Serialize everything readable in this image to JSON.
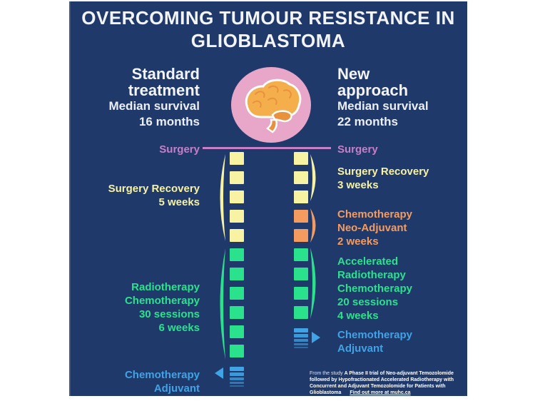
{
  "title": {
    "line1": "OVERCOMING TUMOUR RESISTANCE IN",
    "line2": "GLIOBLASTOMA"
  },
  "columns": {
    "standard": {
      "heading_line1": "Standard",
      "heading_line2": "treatment",
      "sub_line1": "Median survival",
      "sub_line2": "16 months"
    },
    "new": {
      "heading_line1": "New",
      "heading_line2": "approach",
      "sub_line1": "Median survival",
      "sub_line2": "22 months"
    }
  },
  "labels": {
    "std_surgery": {
      "text": "Surgery"
    },
    "std_recovery": {
      "line1": "Surgery Recovery",
      "line2": "5 weeks"
    },
    "std_radio": {
      "line1": "Radiotherapy",
      "line2": "Chemotherapy",
      "line3": "30 sessions",
      "line4": "6 weeks"
    },
    "std_adjuvant": {
      "line1": "Chemotherapy",
      "line2": "Adjuvant"
    },
    "new_surgery": {
      "text": "Surgery"
    },
    "new_recovery": {
      "line1": "Surgery Recovery",
      "line2": "3 weeks"
    },
    "new_neoadjuvant": {
      "line1": "Chemotherapy",
      "line2": "Neo-Adjuvant",
      "line3": "2 weeks"
    },
    "new_accel": {
      "line1": "Accelerated",
      "line2": "Radiotherapy",
      "line3": "Chemotherapy",
      "line4": "20 sessions",
      "line5": "4 weeks"
    },
    "new_adjuvant": {
      "line1": "Chemotherapy",
      "line2": "Adjuvant"
    }
  },
  "bars": {
    "standard": {
      "segments": [
        {
          "name": "surgery-and-recovery",
          "color": "#f7f3a2",
          "blocks": 5
        },
        {
          "name": "radiotherapy-chemotherapy",
          "color": "#2be28c",
          "blocks": 6
        },
        {
          "name": "chemotherapy-adjuvant",
          "color": "#3fa3e6",
          "stripes": 5
        }
      ]
    },
    "new": {
      "segments": [
        {
          "name": "surgery-and-recovery",
          "color": "#f7f3a2",
          "blocks": 3
        },
        {
          "name": "chemotherapy-neo-adjuvant",
          "color": "#f49c60",
          "blocks": 2
        },
        {
          "name": "accelerated-radiotherapy-chemotherapy",
          "color": "#2be28c",
          "blocks": 4
        },
        {
          "name": "chemotherapy-adjuvant",
          "color": "#3fa3e6",
          "stripes": 5
        }
      ]
    }
  },
  "footer": {
    "prefix": "From the study ",
    "study": "A Phase II trial of Neo-adjuvant Temozolomide followed by Hypofractionated Accelerated Radiotherapy with Concurrent and Adjuvant Temozolomide for Patients with Glioblastoma",
    "link": "Find out more at muhc.ca"
  },
  "colors": {
    "background": "#20396b",
    "yellow": "#f7f3a2",
    "green": "#2be28c",
    "orange": "#f49c60",
    "blue": "#3fa3e6",
    "pink": "#c77fc6",
    "circle_pink": "#e8a7c9",
    "brain_orange": "#f4ae4b",
    "brain_dark": "#e8923e",
    "text_white": "#f2f4f8"
  }
}
